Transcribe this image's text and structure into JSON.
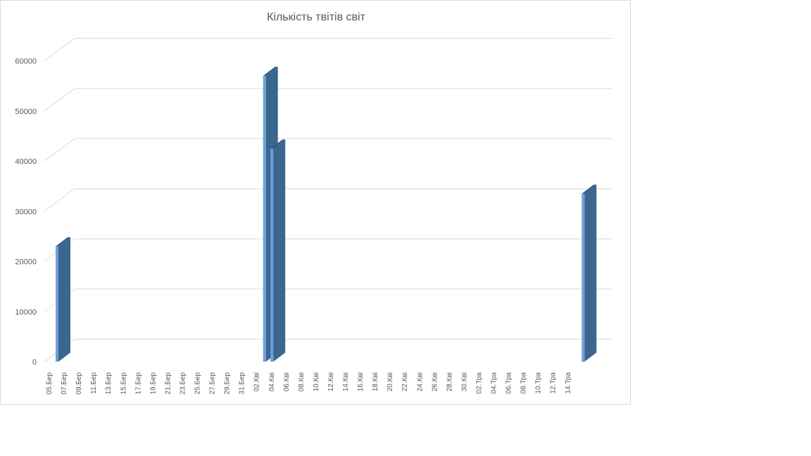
{
  "chart_data": {
    "type": "bar",
    "title": "Кількість твітів світ",
    "xlabel": "",
    "ylabel": "",
    "ylim": [
      0,
      60000
    ],
    "yticks": [
      0,
      10000,
      20000,
      30000,
      40000,
      50000,
      60000
    ],
    "grid": true,
    "legend": "none",
    "bar_color": "#3a6690",
    "bar_highlight": "#6fa0d8",
    "categories": [
      "05.Бер",
      "07.Бер",
      "09.Бер",
      "11.Бер",
      "13.Бер",
      "15.Бер",
      "17.Бер",
      "19.Бер",
      "21.Бер",
      "23.Бер",
      "25.Бер",
      "27.Бер",
      "29.Бер",
      "31.Бер",
      "02.Кві",
      "04.Кві",
      "06.Кві",
      "08.Кві",
      "10.Кві",
      "12.Кві",
      "14.Кві",
      "16.Кві",
      "18.Кві",
      "20.Кві",
      "22.Кві",
      "24.Кві",
      "26.Кві",
      "28.Кві",
      "30.Кві",
      "02.Тра",
      "04.Тра",
      "06.Тра",
      "08.Тра",
      "10.Тра",
      "12.Тра",
      "14.Тра"
    ],
    "series": [
      {
        "points": [
          {
            "x": "05.03",
            "y": 23000
          },
          {
            "x": "02.04",
            "y": 57000
          },
          {
            "x": "03.04",
            "y": 42500
          },
          {
            "x": "15.05",
            "y": 33500
          }
        ]
      }
    ]
  }
}
